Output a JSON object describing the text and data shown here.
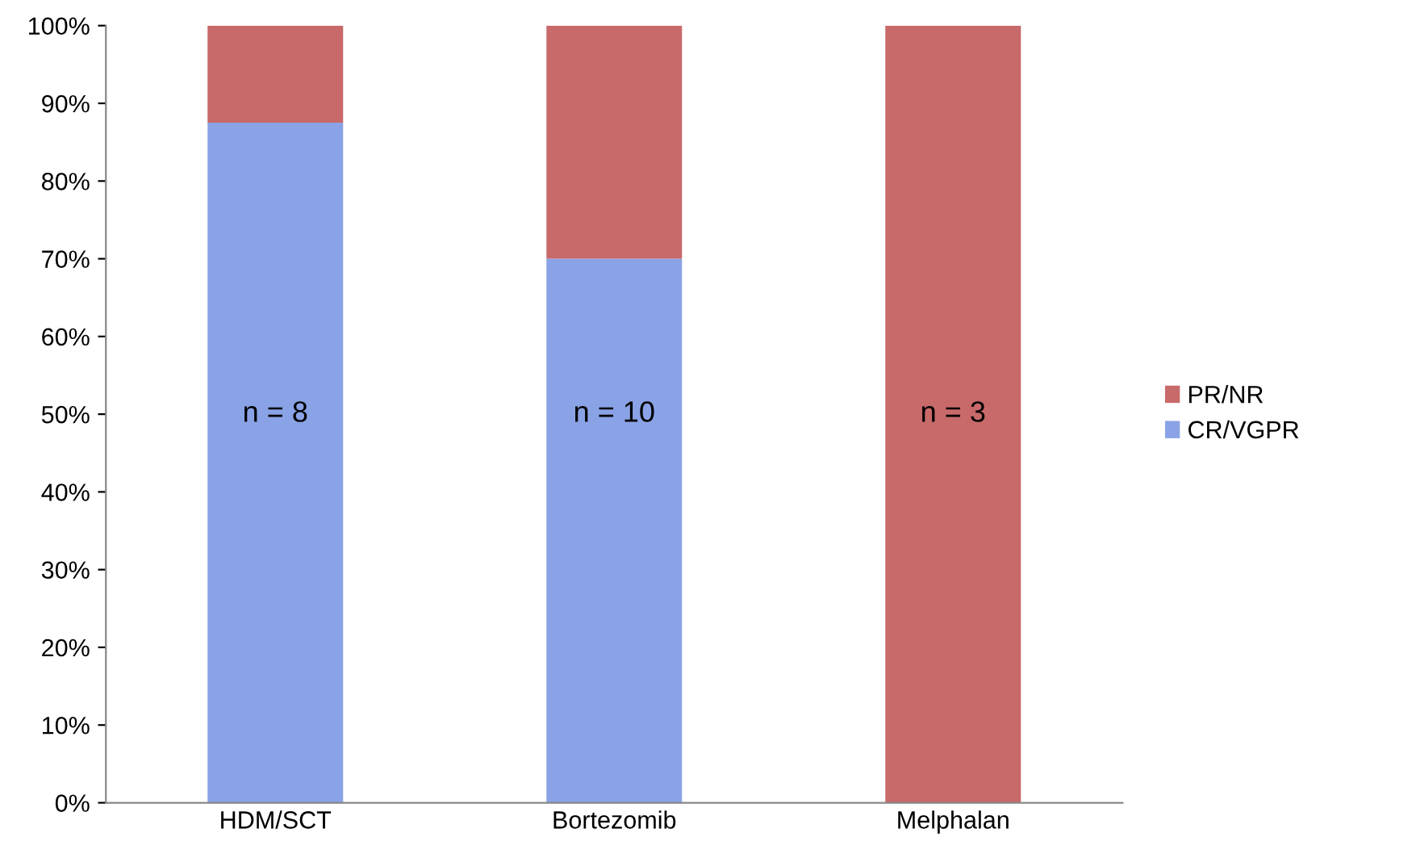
{
  "chart_data": {
    "type": "bar",
    "stacked": true,
    "categories": [
      "HDM/SCT",
      "Bortezomib",
      "Melphalan"
    ],
    "series": [
      {
        "name": "CR/VGPR",
        "color": "#8aa3e6",
        "values": [
          87.5,
          70,
          0
        ]
      },
      {
        "name": "PR/NR",
        "color": "#c8696a",
        "values": [
          12.5,
          30,
          100
        ]
      }
    ],
    "ylim": [
      0,
      100
    ],
    "yticks": [
      {
        "value": 0,
        "label": "0%"
      },
      {
        "value": 10,
        "label": "10%"
      },
      {
        "value": 20,
        "label": "20%"
      },
      {
        "value": 30,
        "label": "30%"
      },
      {
        "value": 40,
        "label": "40%"
      },
      {
        "value": 50,
        "label": "50%"
      },
      {
        "value": 60,
        "label": "60%"
      },
      {
        "value": 70,
        "label": "70%"
      },
      {
        "value": 80,
        "label": "80%"
      },
      {
        "value": 90,
        "label": "90%"
      },
      {
        "value": 100,
        "label": "100%"
      }
    ],
    "annotations": [
      "n = 8",
      "n = 10",
      "n = 3"
    ],
    "legend": "right",
    "grid": false
  }
}
